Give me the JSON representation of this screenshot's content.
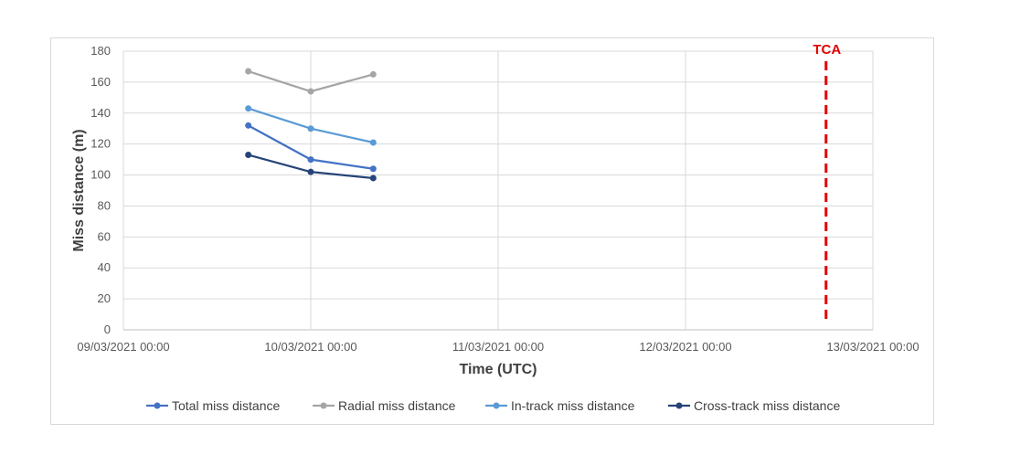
{
  "chart_data": {
    "type": "line",
    "xlabel": "Time (UTC)",
    "ylabel": "Miss distance (m)",
    "ylim": [
      0,
      180
    ],
    "yticks": [
      0,
      20,
      40,
      60,
      80,
      100,
      120,
      140,
      160,
      180
    ],
    "xlim": [
      "09/03/2021 00:00",
      "13/03/2021 00:00"
    ],
    "xticks": [
      "09/03/2021 00:00",
      "10/03/2021 00:00",
      "11/03/2021 00:00",
      "12/03/2021 00:00",
      "13/03/2021 00:00"
    ],
    "grid": true,
    "legend_position": "bottom",
    "x": [
      "09/03/2021 16:00",
      "10/03/2021 00:00",
      "10/03/2021 08:00"
    ],
    "series": [
      {
        "name": "Total miss distance",
        "color": "#4472c4",
        "values": [
          132,
          110,
          104
        ]
      },
      {
        "name": "Radial miss distance",
        "color": "#a5a5a5",
        "values": [
          167,
          154,
          165
        ]
      },
      {
        "name": "In-track miss distance",
        "color": "#5b9bd5",
        "values": [
          143,
          130,
          121
        ]
      },
      {
        "name": "Cross-track miss distance",
        "color": "#264478",
        "values": [
          113,
          102,
          98
        ]
      }
    ],
    "annotations": [
      {
        "label": "TCA",
        "x": "12/03/2021 18:00",
        "color": "#e00000",
        "style": "dashed-vertical-line"
      }
    ]
  }
}
